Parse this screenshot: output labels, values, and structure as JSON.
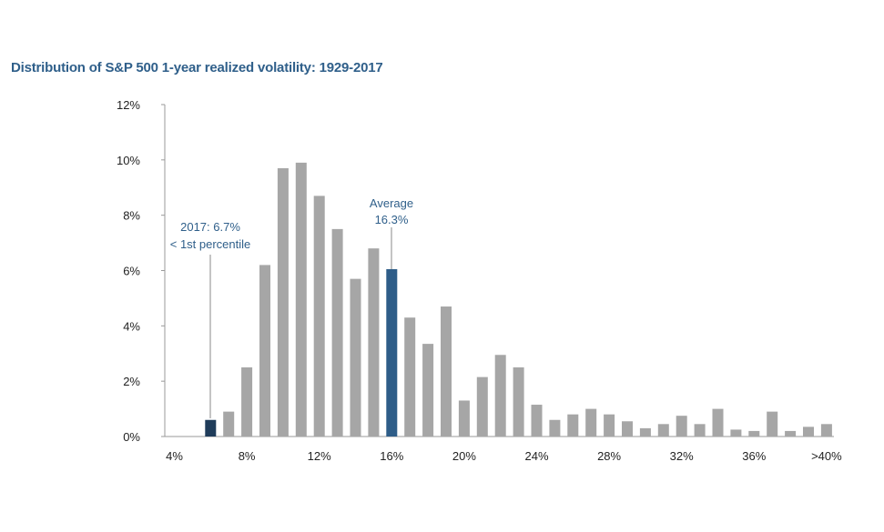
{
  "chart_data": {
    "type": "bar",
    "title": "Distribution of S&P 500 1-year realized volatility: 1929-2017",
    "xlabel": "",
    "ylabel": "",
    "ylim": [
      0,
      12
    ],
    "y_ticks": [
      "0%",
      "2%",
      "4%",
      "6%",
      "8%",
      "10%",
      "12%"
    ],
    "x_tick_labels": [
      "4%",
      "8%",
      "12%",
      "16%",
      "20%",
      "24%",
      "28%",
      "32%",
      "36%",
      ">40%"
    ],
    "categories": [
      "4",
      "5",
      "6",
      "7",
      "8",
      "9",
      "10",
      "11",
      "12",
      "13",
      "14",
      "15",
      "16",
      "17",
      "18",
      "19",
      "20",
      "21",
      "22",
      "23",
      "24",
      "25",
      "26",
      "27",
      "28",
      "29",
      "30",
      "31",
      "32",
      "33",
      "34",
      "35",
      "36",
      "37",
      "38",
      "39",
      ">40"
    ],
    "values": [
      0,
      0,
      0.6,
      0.9,
      2.5,
      6.2,
      9.7,
      9.9,
      8.7,
      7.5,
      5.7,
      6.8,
      6.05,
      4.3,
      3.35,
      4.7,
      1.3,
      2.15,
      2.95,
      2.5,
      1.15,
      0.6,
      0.8,
      1.0,
      0.8,
      0.55,
      0.3,
      0.45,
      0.75,
      0.45,
      1.0,
      0.25,
      0.2,
      0.9,
      0.2,
      0.35,
      0.45
    ],
    "highlight": {
      "2017": 2,
      "average": 12
    },
    "colors": {
      "bar": "#a6a6a6",
      "highlight_2017": "#1f3c5a",
      "highlight_average": "#2e5d88",
      "axis": "#9a9a9a",
      "annotation": "#2f5f8a"
    },
    "annotations": {
      "y2017_line1": "2017: 6.7%",
      "y2017_line2": "< 1st percentile",
      "avg_line1": "Average",
      "avg_line2": "16.3%"
    },
    "grid": false
  }
}
